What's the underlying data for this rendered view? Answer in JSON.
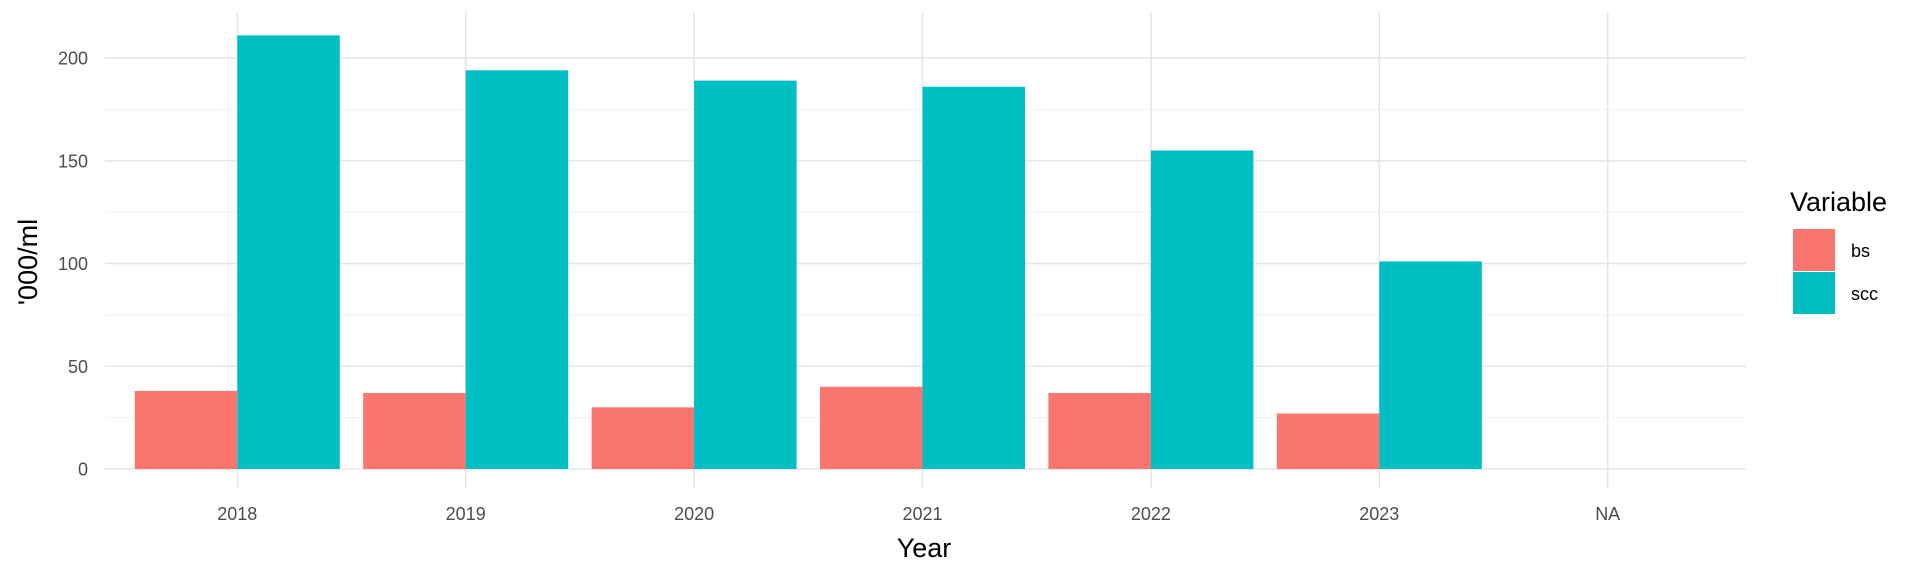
{
  "chart_data": {
    "type": "bar",
    "title": "",
    "xlabel": "Year",
    "ylabel": "'000/ml",
    "categories": [
      "2018",
      "2019",
      "2020",
      "2021",
      "2022",
      "2023",
      "NA"
    ],
    "series": [
      {
        "name": "bs",
        "color": "#F8766D",
        "values": [
          38,
          37,
          30,
          40,
          37,
          27,
          null
        ]
      },
      {
        "name": "scc",
        "color": "#00BFC4",
        "values": [
          211,
          194,
          189,
          186,
          155,
          101,
          null
        ]
      }
    ],
    "yticks": [
      0,
      50,
      100,
      150,
      200
    ],
    "ylim": [
      -8,
      220
    ],
    "grid": true,
    "legend": {
      "title": "Variable",
      "position": "right"
    }
  }
}
